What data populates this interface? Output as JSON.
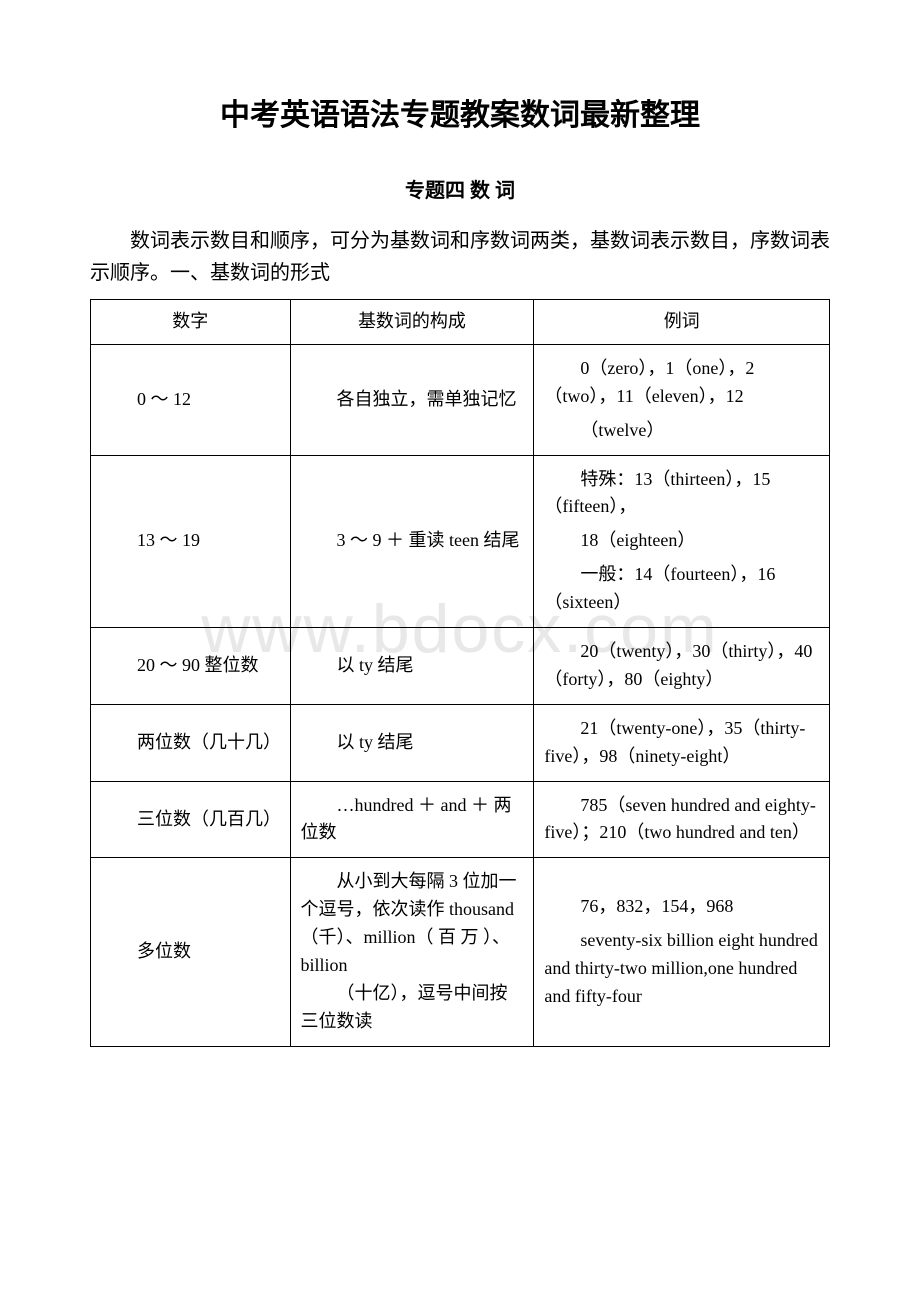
{
  "watermark": "www.bdocx.com",
  "title": "中考英语语法专题教案数词最新整理",
  "subtitle": "专题四 数 词",
  "intro_line1": "数词表示数目和顺序，可分为基数词和序数词两类，基数词表示数目，序数词表示顺序。一、基数词的形式",
  "table": {
    "headers": [
      "数字",
      "基数词的构成",
      "例词"
    ],
    "rows": [
      {
        "c1": "0 ～ 12",
        "c2": [
          "各自独立，需单独记忆"
        ],
        "c3": [
          "0（zero），1（one），2（two），11（eleven），12",
          "（twelve）"
        ]
      },
      {
        "c1": "13 ～ 19",
        "c2": [
          "3 ～ 9 ＋ 重读 teen 结尾"
        ],
        "c3": [
          "特殊：13（thirteen），15（fifteen），",
          "18（eighteen）",
          "一般：14（fourteen），16（sixteen）"
        ]
      },
      {
        "c1": "20 ～ 90 整位数",
        "c2": [
          "以 ty 结尾"
        ],
        "c3": [
          "20（twenty），30（thirty），40（forty），80（eighty）"
        ]
      },
      {
        "c1": "两位数（几十几）",
        "c2": [
          "以 ty 结尾"
        ],
        "c3": [
          "21（twenty-one），35（thirty-five），98（ninety-eight）"
        ]
      },
      {
        "c1": "三位数（几百几）",
        "c2": [
          "…hundred ＋ and ＋ 两位数"
        ],
        "c3": [
          "785（seven hundred and eighty-five）；210（two hundred and ten）"
        ]
      },
      {
        "c1": "多位数",
        "c2": [
          "从小到大每隔 3 位加一个逗号，依次读作 thousand（千）、million（ 百 万 ）、billion",
          "（十亿），逗号中间按三位数读"
        ],
        "c3": [
          "76，832，154，968",
          "seventy-six billion eight hundred and thirty-two million,one hundred and fifty-four"
        ]
      }
    ]
  }
}
